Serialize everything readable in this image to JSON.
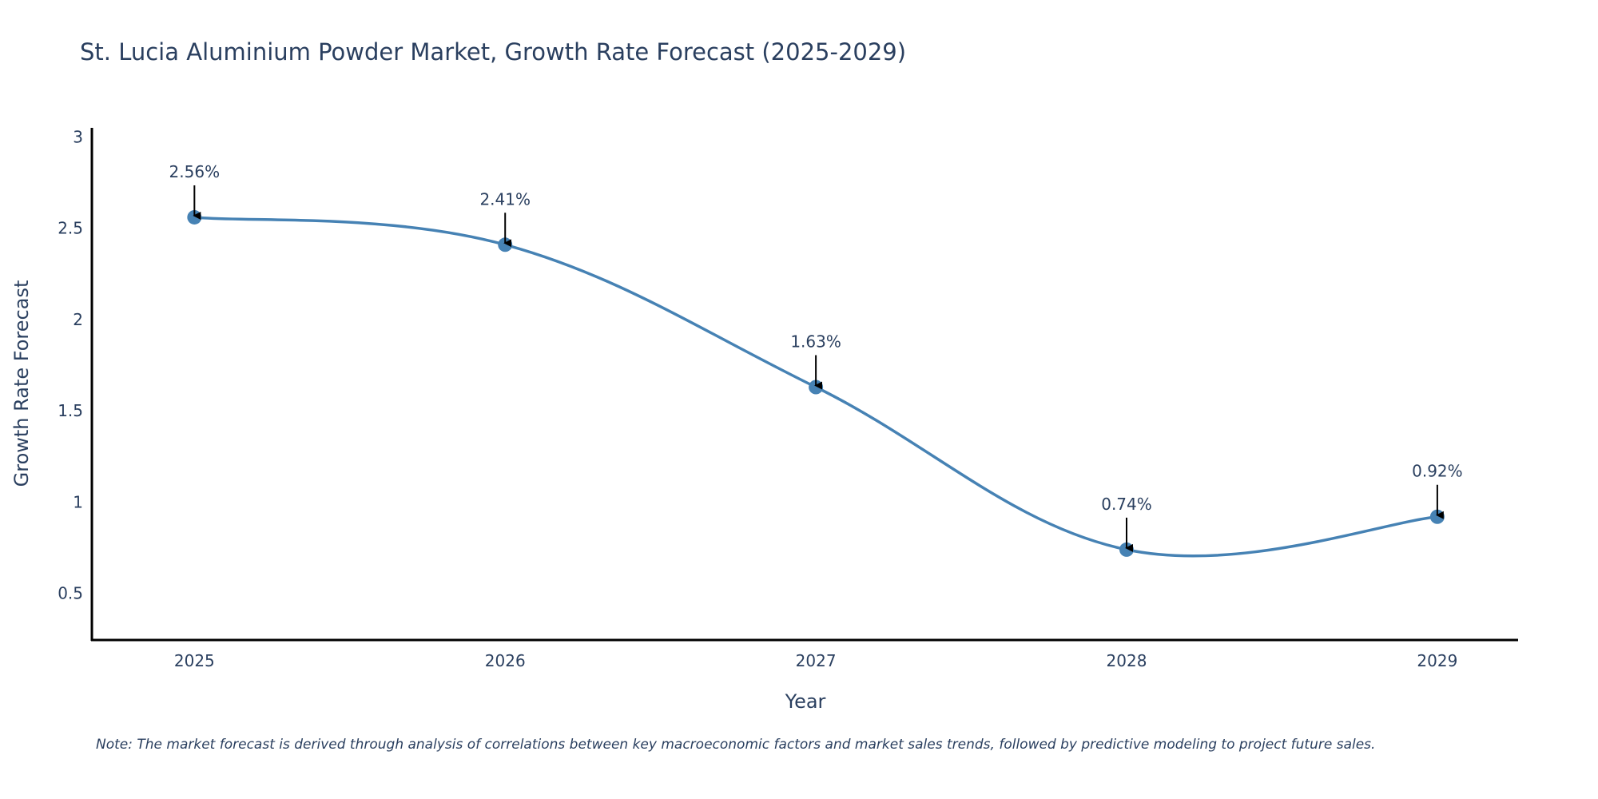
{
  "chart_data": {
    "type": "line",
    "title": "St. Lucia Aluminium Powder Market, Growth Rate Forecast (2025-2029)",
    "xlabel": "Year",
    "ylabel": "Growth Rate Forecast",
    "categories": [
      "2025",
      "2026",
      "2027",
      "2028",
      "2029"
    ],
    "series": [
      {
        "name": "Growth Rate Forecast",
        "values": [
          2.56,
          2.41,
          1.63,
          0.74,
          0.92
        ],
        "labels": [
          "2.56%",
          "2.41%",
          "1.63%",
          "0.74%",
          "0.92%"
        ],
        "color": "#4682B4",
        "line_shape": "spline",
        "markers": true
      }
    ],
    "yticks": [
      0.5,
      1,
      1.5,
      2,
      2.5,
      3
    ],
    "ytick_labels": [
      "0.5",
      "1",
      "1.5",
      "2",
      "2.5",
      "3"
    ],
    "ylim": [
      0.245,
      3.05
    ],
    "xlim": [
      2024.67,
      2029.26
    ],
    "grid": false,
    "legend": "none",
    "annotations": "arrow labels above each point",
    "note": "Note: The market forecast is derived through analysis of correlations between key macroeconomic factors and market sales trends, followed by predictive modeling to project future sales."
  }
}
